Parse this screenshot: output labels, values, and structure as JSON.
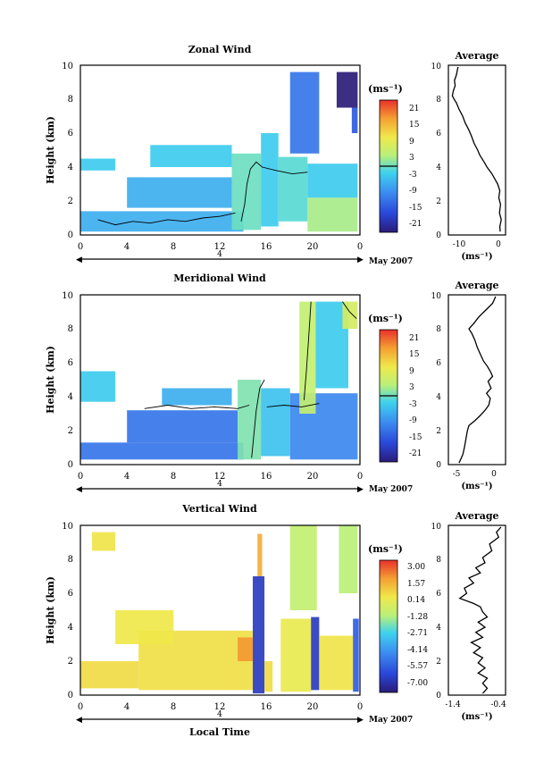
{
  "chart_data": [
    {
      "type": "heatmap",
      "title": "Zonal Wind",
      "ylabel": "Height (km)",
      "ylim": [
        0,
        10
      ],
      "yticks": [
        "0",
        "2",
        "4",
        "6",
        "8",
        "10"
      ],
      "xlim": [
        0,
        24
      ],
      "xticks": [
        "0",
        "4",
        "8",
        "12",
        "16",
        "20",
        "0"
      ],
      "date_tick_label": "4",
      "date_label": "May 2007",
      "colorbar": {
        "unit": "(ms⁻¹)",
        "ticks": [
          "21",
          "15",
          "9",
          "3",
          "-3",
          "-9",
          "-15",
          "-21"
        ],
        "range": [
          -24,
          24
        ],
        "contour_level": 0
      },
      "profile": {
        "title": "Average",
        "xlabel": "(ms⁻¹)",
        "xticks": [
          "-10",
          "0"
        ],
        "xlim": [
          -14,
          2
        ],
        "ylim": [
          0,
          10
        ],
        "yticks": [
          "0",
          "2",
          "4",
          "6",
          "8",
          "10"
        ],
        "points": [
          [
            0.5,
            0.2
          ],
          [
            0.4,
            0.5
          ],
          [
            0.8,
            0.9
          ],
          [
            0.3,
            1.3
          ],
          [
            0.6,
            1.8
          ],
          [
            0.1,
            2.2
          ],
          [
            0.4,
            2.6
          ],
          [
            -0.2,
            3.0
          ],
          [
            -1.0,
            3.3
          ],
          [
            -1.8,
            3.6
          ],
          [
            -3.2,
            4.0
          ],
          [
            -4.0,
            4.3
          ],
          [
            -5.2,
            4.7
          ],
          [
            -5.8,
            5.0
          ],
          [
            -6.8,
            5.4
          ],
          [
            -7.5,
            5.8
          ],
          [
            -8.3,
            6.2
          ],
          [
            -9.3,
            6.6
          ],
          [
            -10.0,
            7.0
          ],
          [
            -11.0,
            7.4
          ],
          [
            -11.8,
            7.8
          ],
          [
            -12.4,
            8.0
          ],
          [
            -12.9,
            8.2
          ],
          [
            -12.6,
            8.5
          ],
          [
            -12.1,
            8.8
          ],
          [
            -12.3,
            9.1
          ],
          [
            -11.8,
            9.4
          ],
          [
            -11.5,
            9.7
          ],
          [
            -11.3,
            9.9
          ]
        ]
      },
      "fields": [
        {
          "t0": 0,
          "t1": 14,
          "h0": 0.2,
          "h1": 1.4,
          "value": -6
        },
        {
          "t0": 4,
          "t1": 13,
          "h0": 1.6,
          "h1": 3.4,
          "value": -6
        },
        {
          "t0": 0,
          "t1": 3,
          "h0": 3.8,
          "h1": 4.5,
          "value": -3
        },
        {
          "t0": 6,
          "t1": 13,
          "h0": 4.0,
          "h1": 5.3,
          "value": -3
        },
        {
          "t0": 13,
          "t1": 15.5,
          "h0": 0.3,
          "h1": 4.8,
          "value": 0
        },
        {
          "t0": 15.5,
          "t1": 17,
          "h0": 0.5,
          "h1": 6.0,
          "value": -3
        },
        {
          "t0": 17,
          "t1": 19.5,
          "h0": 0.8,
          "h1": 4.6,
          "value": -1
        },
        {
          "t0": 19.5,
          "t1": 23.8,
          "h0": 0.2,
          "h1": 2.2,
          "value": 3
        },
        {
          "t0": 19.5,
          "t1": 23.8,
          "h0": 2.2,
          "h1": 4.2,
          "value": -3
        },
        {
          "t0": 18,
          "t1": 20.5,
          "h0": 4.8,
          "h1": 9.6,
          "value": -12
        },
        {
          "t0": 22,
          "t1": 23.8,
          "h0": 7.5,
          "h1": 9.6,
          "value": -24
        },
        {
          "t0": 23.3,
          "t1": 23.8,
          "h0": 6.0,
          "h1": 7.5,
          "value": -15
        }
      ],
      "contours": [
        [
          [
            1.5,
            0.9
          ],
          [
            3.0,
            0.6
          ],
          [
            4.5,
            0.8
          ],
          [
            6.0,
            0.7
          ],
          [
            7.5,
            0.9
          ],
          [
            9.0,
            0.8
          ],
          [
            10.5,
            1.0
          ],
          [
            12.0,
            1.1
          ],
          [
            13.3,
            1.3
          ]
        ],
        [
          [
            13.8,
            0.8
          ],
          [
            14.1,
            1.8
          ],
          [
            14.3,
            3.0
          ],
          [
            14.6,
            3.9
          ],
          [
            15.1,
            4.3
          ],
          [
            15.6,
            4.0
          ],
          [
            16.8,
            3.8
          ],
          [
            18.2,
            3.6
          ],
          [
            19.5,
            3.7
          ]
        ]
      ]
    },
    {
      "type": "heatmap",
      "title": "Meridional Wind",
      "ylabel": "Height (km)",
      "ylim": [
        0,
        10
      ],
      "yticks": [
        "0",
        "2",
        "4",
        "6",
        "8",
        "10"
      ],
      "xlim": [
        0,
        24
      ],
      "xticks": [
        "0",
        "4",
        "8",
        "12",
        "16",
        "20",
        "0"
      ],
      "date_tick_label": "4",
      "date_label": "May 2007",
      "colorbar": {
        "unit": "(ms⁻¹)",
        "ticks": [
          "21",
          "15",
          "9",
          "3",
          "-3",
          "-9",
          "-15",
          "-21"
        ],
        "range": [
          -24,
          24
        ],
        "contour_level": 0
      },
      "profile": {
        "title": "Average",
        "xlabel": "(ms⁻¹)",
        "xticks": [
          "-5",
          "0"
        ],
        "xlim": [
          -6,
          1.5
        ],
        "ylim": [
          0,
          10
        ],
        "yticks": [
          "0",
          "2",
          "4",
          "6",
          "8",
          "10"
        ],
        "points": [
          [
            -4.6,
            0.1
          ],
          [
            -4.4,
            0.3
          ],
          [
            -4.1,
            0.6
          ],
          [
            -3.9,
            1.0
          ],
          [
            -3.7,
            1.5
          ],
          [
            -3.5,
            2.0
          ],
          [
            -3.3,
            2.3
          ],
          [
            -2.5,
            2.6
          ],
          [
            -1.8,
            2.9
          ],
          [
            -1.2,
            3.2
          ],
          [
            -0.7,
            3.5
          ],
          [
            -0.5,
            3.9
          ],
          [
            -1.0,
            4.2
          ],
          [
            -0.4,
            4.5
          ],
          [
            -0.8,
            4.9
          ],
          [
            -0.2,
            5.2
          ],
          [
            -0.5,
            5.5
          ],
          [
            -0.9,
            5.8
          ],
          [
            -1.4,
            6.1
          ],
          [
            -1.8,
            6.5
          ],
          [
            -2.2,
            6.9
          ],
          [
            -2.5,
            7.3
          ],
          [
            -2.9,
            7.7
          ],
          [
            -3.3,
            8.0
          ],
          [
            -2.7,
            8.3
          ],
          [
            -2.0,
            8.7
          ],
          [
            -1.1,
            9.1
          ],
          [
            -0.2,
            9.5
          ],
          [
            0.2,
            9.9
          ]
        ]
      },
      "fields": [
        {
          "t0": 0,
          "t1": 14,
          "h0": 0.3,
          "h1": 1.3,
          "value": -12
        },
        {
          "t0": 4,
          "t1": 13.5,
          "h0": 1.3,
          "h1": 3.2,
          "value": -12
        },
        {
          "t0": 0,
          "t1": 3,
          "h0": 3.7,
          "h1": 5.5,
          "value": -3
        },
        {
          "t0": 7,
          "t1": 13,
          "h0": 3.5,
          "h1": 4.5,
          "value": -6
        },
        {
          "t0": 13.5,
          "t1": 15.5,
          "h0": 0.3,
          "h1": 5.0,
          "value": 1
        },
        {
          "t0": 15.5,
          "t1": 18,
          "h0": 0.5,
          "h1": 4.5,
          "value": -4
        },
        {
          "t0": 18,
          "t1": 23.8,
          "h0": 0.3,
          "h1": 4.2,
          "value": -10
        },
        {
          "t0": 18.8,
          "t1": 20.2,
          "h0": 3.0,
          "h1": 9.6,
          "value": 5
        },
        {
          "t0": 20.2,
          "t1": 23,
          "h0": 4.5,
          "h1": 9.6,
          "value": -3
        },
        {
          "t0": 22.5,
          "t1": 23.8,
          "h0": 8.0,
          "h1": 9.6,
          "value": 7
        }
      ],
      "contours": [
        [
          [
            5.5,
            3.3
          ],
          [
            7.5,
            3.5
          ],
          [
            9.5,
            3.3
          ],
          [
            11.5,
            3.4
          ],
          [
            13.5,
            3.3
          ],
          [
            14.5,
            3.5
          ]
        ],
        [
          [
            14.7,
            0.4
          ],
          [
            14.9,
            1.8
          ],
          [
            15.1,
            3.2
          ],
          [
            15.4,
            4.5
          ],
          [
            15.8,
            5.0
          ]
        ],
        [
          [
            16.0,
            3.4
          ],
          [
            17.5,
            3.5
          ],
          [
            19.0,
            3.4
          ],
          [
            20.5,
            3.6
          ]
        ],
        [
          [
            19.2,
            3.8
          ],
          [
            19.4,
            5.5
          ],
          [
            19.6,
            7.5
          ],
          [
            19.8,
            9.6
          ]
        ],
        [
          [
            22.5,
            9.6
          ],
          [
            23.1,
            9.0
          ],
          [
            23.7,
            8.6
          ]
        ]
      ]
    },
    {
      "type": "heatmap",
      "title": "Vertical Wind",
      "xlabel": "Local Time",
      "ylabel": "Height (km)",
      "ylim": [
        0,
        10
      ],
      "yticks": [
        "0",
        "2",
        "4",
        "6",
        "8",
        "10"
      ],
      "xlim": [
        0,
        24
      ],
      "xticks": [
        "0",
        "4",
        "8",
        "12",
        "16",
        "20",
        "0"
      ],
      "date_tick_label": "4",
      "date_label": "May 2007",
      "colorbar": {
        "unit": "(ms⁻¹)",
        "ticks": [
          "3.00",
          "1.57",
          "0.14",
          "-1.28",
          "-2.71",
          "-4.14",
          "-5.57",
          "-7.00"
        ],
        "range": [
          -7.7,
          3.7
        ]
      },
      "profile": {
        "title": "Average",
        "xlabel": "(ms⁻¹)",
        "xticks": [
          "-1.4",
          "-0.4"
        ],
        "xlim": [
          -1.55,
          -0.3
        ],
        "ylim": [
          0,
          10
        ],
        "yticks": [
          "0",
          "2",
          "4",
          "6",
          "8",
          "10"
        ],
        "points": [
          [
            -0.8,
            0.1
          ],
          [
            -0.7,
            0.4
          ],
          [
            -0.8,
            0.7
          ],
          [
            -0.7,
            1.0
          ],
          [
            -0.9,
            1.3
          ],
          [
            -0.75,
            1.6
          ],
          [
            -0.9,
            1.9
          ],
          [
            -0.8,
            2.2
          ],
          [
            -1.0,
            2.5
          ],
          [
            -0.85,
            2.8
          ],
          [
            -1.05,
            3.1
          ],
          [
            -0.8,
            3.4
          ],
          [
            -0.95,
            3.7
          ],
          [
            -0.75,
            4.0
          ],
          [
            -0.9,
            4.3
          ],
          [
            -0.7,
            4.6
          ],
          [
            -0.8,
            4.9
          ],
          [
            -0.85,
            5.2
          ],
          [
            -1.0,
            5.4
          ],
          [
            -1.3,
            5.7
          ],
          [
            -1.15,
            6.0
          ],
          [
            -1.2,
            6.3
          ],
          [
            -1.0,
            6.6
          ],
          [
            -1.1,
            6.9
          ],
          [
            -0.85,
            7.2
          ],
          [
            -0.95,
            7.5
          ],
          [
            -0.75,
            7.8
          ],
          [
            -0.8,
            8.1
          ],
          [
            -0.6,
            8.5
          ],
          [
            -0.65,
            8.9
          ],
          [
            -0.45,
            9.3
          ],
          [
            -0.5,
            9.6
          ],
          [
            -0.4,
            9.9
          ]
        ]
      },
      "fields": [
        {
          "t0": 0,
          "t1": 5,
          "h0": 0.4,
          "h1": 2.0,
          "value": 0.8
        },
        {
          "t0": 5,
          "t1": 14.8,
          "h0": 0.3,
          "h1": 3.8,
          "value": 0.7
        },
        {
          "t0": 3,
          "t1": 8,
          "h0": 3.0,
          "h1": 5.0,
          "value": 0.5
        },
        {
          "t0": 1,
          "t1": 3,
          "h0": 8.5,
          "h1": 9.6,
          "value": 0.6
        },
        {
          "t0": 13.5,
          "t1": 14.8,
          "h0": 2.0,
          "h1": 3.4,
          "value": 2.2
        },
        {
          "t0": 14.8,
          "t1": 15.8,
          "h0": 0.1,
          "h1": 7.0,
          "value": -6.5
        },
        {
          "t0": 15.8,
          "t1": 16.5,
          "h0": 0.2,
          "h1": 2.0,
          "value": 0.8
        },
        {
          "t0": 17.2,
          "t1": 19.8,
          "h0": 0.2,
          "h1": 4.5,
          "value": 0.3
        },
        {
          "t0": 19.8,
          "t1": 20.5,
          "h0": 0.3,
          "h1": 4.6,
          "value": -6.5
        },
        {
          "t0": 20.5,
          "t1": 23.4,
          "h0": 0.3,
          "h1": 3.5,
          "value": 0.6
        },
        {
          "t0": 23.4,
          "t1": 23.9,
          "h0": 0.2,
          "h1": 4.5,
          "value": -5.5
        },
        {
          "t0": 18,
          "t1": 20.3,
          "h0": 5.0,
          "h1": 10.0,
          "value": -0.8
        },
        {
          "t0": 22.2,
          "t1": 23.8,
          "h0": 6.0,
          "h1": 10.0,
          "value": -1.0
        },
        {
          "t0": 15.2,
          "t1": 15.6,
          "h0": 7.0,
          "h1": 9.5,
          "value": 1.8
        }
      ]
    }
  ]
}
